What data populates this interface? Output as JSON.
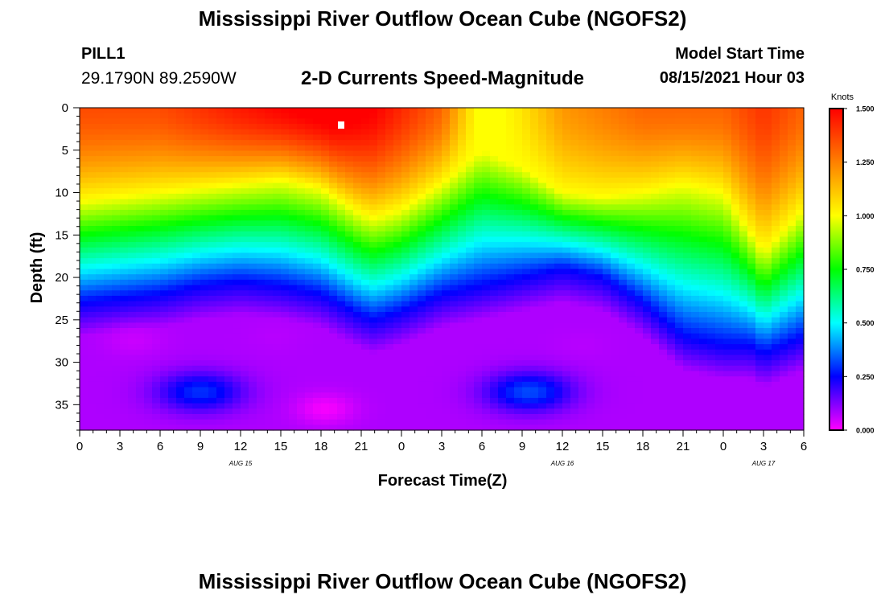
{
  "header": {
    "title": "Mississippi River Outflow Ocean Cube (NGOFS2)",
    "station": "PILL1",
    "coords": "29.1790N  89.2590W",
    "subtitle": "2-D Currents Speed-Magnitude",
    "model_start_label": "Model Start Time",
    "model_start_value": "08/15/2021 Hour 03"
  },
  "footer": {
    "title": "Mississippi River Outflow Ocean Cube (NGOFS2)"
  },
  "chart_data": {
    "type": "heatmap",
    "title": "2-D Currents Speed-Magnitude",
    "xlabel": "Forecast Time(Z)",
    "ylabel": "Depth (ft)",
    "x_unit": "hours since 08/15/2021 00Z",
    "xlim": [
      0,
      54
    ],
    "ylim": [
      38,
      0
    ],
    "x_ticks": [
      0,
      3,
      6,
      9,
      12,
      15,
      18,
      21,
      24,
      27,
      30,
      33,
      36,
      39,
      42,
      45,
      48,
      51,
      54
    ],
    "x_tick_labels": [
      "0",
      "3",
      "6",
      "9",
      "12",
      "15",
      "18",
      "21",
      "0",
      "3",
      "6",
      "9",
      "12",
      "15",
      "18",
      "21",
      "0",
      "3",
      "6"
    ],
    "y_ticks": [
      0,
      5,
      10,
      15,
      20,
      25,
      30,
      35
    ],
    "y_tick_labels": [
      "0",
      "5",
      "10",
      "15",
      "20",
      "25",
      "30",
      "35"
    ],
    "date_labels": [
      {
        "x": 12,
        "label": "AUG 15"
      },
      {
        "x": 36,
        "label": "AUG 16"
      },
      {
        "x": 51,
        "label": "AUG 17"
      }
    ],
    "colorbar": {
      "title": "Knots",
      "min": 0,
      "max": 1.5,
      "ticks": [
        0,
        0.25,
        0.5,
        0.75,
        1.0,
        1.25,
        1.5
      ],
      "tick_labels": [
        "0.000",
        "0.250",
        "0.500",
        "0.750",
        "1.000",
        "1.250",
        "1.500"
      ],
      "colors": [
        "#ff00ff",
        "#8000ff",
        "#0000ff",
        "#0080ff",
        "#00ffff",
        "#00ff80",
        "#00ff00",
        "#80ff00",
        "#ffff00",
        "#ffc000",
        "#ff8000",
        "#ff4000",
        "#ff0000"
      ]
    },
    "surface_speed_knots": {
      "x": [
        0,
        6,
        12,
        19,
        22,
        27,
        30,
        33,
        36,
        42,
        48,
        51,
        54
      ],
      "values": [
        1.35,
        1.35,
        1.45,
        1.55,
        1.5,
        1.3,
        0.95,
        1.05,
        1.2,
        1.3,
        1.3,
        1.4,
        1.3
      ]
    },
    "speed_1_knot_depth_ft": {
      "x": [
        0,
        3,
        6,
        9,
        12,
        15,
        18,
        21,
        22,
        24,
        27,
        30,
        33,
        36,
        39,
        42,
        45,
        48,
        51,
        54
      ],
      "values": [
        11,
        10.5,
        10,
        9.5,
        9,
        8.5,
        9.5,
        12.5,
        13,
        12,
        9,
        5,
        7,
        10,
        10.5,
        10,
        9,
        10,
        17,
        12
      ]
    },
    "speed_0_25_knot_depth_ft": {
      "x": [
        0,
        3,
        6,
        9,
        12,
        15,
        18,
        21,
        22,
        24,
        27,
        30,
        33,
        36,
        39,
        42,
        45,
        48,
        50,
        51,
        54
      ],
      "values": [
        23,
        22.5,
        22,
        21,
        20.5,
        21,
        22,
        24.5,
        25,
        24,
        22,
        21,
        20,
        19,
        20,
        23,
        27,
        28,
        28,
        29,
        27
      ]
    },
    "minima": [
      {
        "x": 18.3,
        "depth_ft": 35.5,
        "value": 0.0
      },
      {
        "x": 4,
        "depth_ft": 27.5,
        "value": 0.05
      },
      {
        "x": 14.5,
        "depth_ft": 27,
        "value": 0.07
      },
      {
        "x": 37.5,
        "depth_ft": 28,
        "value": 0.07
      }
    ],
    "maxima_deep": [
      {
        "x": 9,
        "depth_ft": 33.5,
        "value": 0.32
      },
      {
        "x": 33.5,
        "depth_ft": 33.5,
        "value": 0.35
      }
    ],
    "marker": {
      "x": 19.5,
      "depth_ft": 2
    }
  }
}
